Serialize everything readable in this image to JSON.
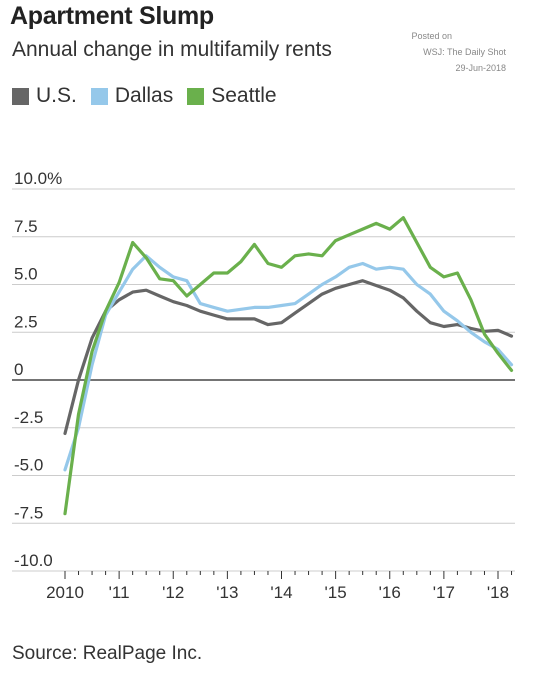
{
  "title": "Apartment Slump",
  "subtitle": "Annual change in multifamily rents",
  "credit": {
    "line1": "Posted on",
    "line2": "WSJ: The Daily Shot",
    "line3": "29-Jun-2018"
  },
  "source": "Source: RealPage Inc.",
  "colors": {
    "us": "#666666",
    "dallas": "#95c8ea",
    "seattle": "#6ab04c",
    "grid": "#cccccc",
    "zero": "#222222"
  },
  "chart_data": {
    "type": "line",
    "title": "Apartment Slump",
    "subtitle": "Annual change in multifamily rents",
    "ylabel": "",
    "xlabel": "",
    "ylim": [
      -10,
      10
    ],
    "xlim": [
      2010,
      2018.6
    ],
    "y_ticks": [
      10,
      7.5,
      5,
      2.5,
      0,
      -2.5,
      -5,
      -7.5,
      -10
    ],
    "y_tick_labels": [
      "10.0%",
      "7.5",
      "5.0",
      "2.5",
      "0",
      "-2.5",
      "-5.0",
      "-7.5",
      "-10.0"
    ],
    "x_ticks": [
      2010,
      2011,
      2012,
      2013,
      2014,
      2015,
      2016,
      2017,
      2018
    ],
    "x_tick_labels": [
      "2010",
      "'11",
      "'12",
      "'13",
      "'14",
      "'15",
      "'16",
      "'17",
      "'18"
    ],
    "grid": true,
    "legend_position": "top-left",
    "series": [
      {
        "name": "U.S.",
        "color": "#666666",
        "points": [
          [
            2010.0,
            -2.8
          ],
          [
            2010.25,
            0.0
          ],
          [
            2010.5,
            2.2
          ],
          [
            2010.75,
            3.6
          ],
          [
            2011.0,
            4.2
          ],
          [
            2011.25,
            4.6
          ],
          [
            2011.5,
            4.7
          ],
          [
            2011.75,
            4.4
          ],
          [
            2012.0,
            4.1
          ],
          [
            2012.25,
            3.9
          ],
          [
            2012.5,
            3.6
          ],
          [
            2012.75,
            3.4
          ],
          [
            2013.0,
            3.2
          ],
          [
            2013.25,
            3.2
          ],
          [
            2013.5,
            3.2
          ],
          [
            2013.75,
            2.9
          ],
          [
            2014.0,
            3.0
          ],
          [
            2014.25,
            3.5
          ],
          [
            2014.5,
            4.0
          ],
          [
            2014.75,
            4.5
          ],
          [
            2015.0,
            4.8
          ],
          [
            2015.25,
            5.0
          ],
          [
            2015.5,
            5.2
          ],
          [
            2015.75,
            4.95
          ],
          [
            2016.0,
            4.7
          ],
          [
            2016.25,
            4.3
          ],
          [
            2016.5,
            3.6
          ],
          [
            2016.75,
            3.0
          ],
          [
            2017.0,
            2.8
          ],
          [
            2017.25,
            2.9
          ],
          [
            2017.5,
            2.7
          ],
          [
            2017.75,
            2.55
          ],
          [
            2018.0,
            2.6
          ],
          [
            2018.25,
            2.3
          ]
        ]
      },
      {
        "name": "Dallas",
        "color": "#95c8ea",
        "points": [
          [
            2010.0,
            -4.7
          ],
          [
            2010.25,
            -2.5
          ],
          [
            2010.5,
            0.8
          ],
          [
            2010.75,
            3.4
          ],
          [
            2011.0,
            4.6
          ],
          [
            2011.25,
            5.8
          ],
          [
            2011.5,
            6.5
          ],
          [
            2011.75,
            5.9
          ],
          [
            2012.0,
            5.4
          ],
          [
            2012.25,
            5.2
          ],
          [
            2012.5,
            4.0
          ],
          [
            2012.75,
            3.8
          ],
          [
            2013.0,
            3.6
          ],
          [
            2013.25,
            3.7
          ],
          [
            2013.5,
            3.8
          ],
          [
            2013.75,
            3.8
          ],
          [
            2014.0,
            3.9
          ],
          [
            2014.25,
            4.0
          ],
          [
            2014.5,
            4.5
          ],
          [
            2014.75,
            5.0
          ],
          [
            2015.0,
            5.4
          ],
          [
            2015.25,
            5.9
          ],
          [
            2015.5,
            6.1
          ],
          [
            2015.75,
            5.8
          ],
          [
            2016.0,
            5.9
          ],
          [
            2016.25,
            5.8
          ],
          [
            2016.5,
            5.0
          ],
          [
            2016.75,
            4.5
          ],
          [
            2017.0,
            3.6
          ],
          [
            2017.25,
            3.1
          ],
          [
            2017.5,
            2.5
          ],
          [
            2017.75,
            2.0
          ],
          [
            2018.0,
            1.6
          ],
          [
            2018.25,
            0.8
          ]
        ]
      },
      {
        "name": "Seattle",
        "color": "#6ab04c",
        "points": [
          [
            2010.0,
            -7.0
          ],
          [
            2010.25,
            -1.8
          ],
          [
            2010.5,
            1.5
          ],
          [
            2010.75,
            3.6
          ],
          [
            2011.0,
            5.1
          ],
          [
            2011.25,
            7.2
          ],
          [
            2011.5,
            6.4
          ],
          [
            2011.75,
            5.3
          ],
          [
            2012.0,
            5.2
          ],
          [
            2012.25,
            4.4
          ],
          [
            2012.5,
            5.0
          ],
          [
            2012.75,
            5.6
          ],
          [
            2013.0,
            5.6
          ],
          [
            2013.25,
            6.2
          ],
          [
            2013.5,
            7.1
          ],
          [
            2013.75,
            6.1
          ],
          [
            2014.0,
            5.9
          ],
          [
            2014.25,
            6.5
          ],
          [
            2014.5,
            6.6
          ],
          [
            2014.75,
            6.5
          ],
          [
            2015.0,
            7.3
          ],
          [
            2015.25,
            7.6
          ],
          [
            2015.5,
            7.9
          ],
          [
            2015.75,
            8.2
          ],
          [
            2016.0,
            7.9
          ],
          [
            2016.25,
            8.5
          ],
          [
            2016.5,
            7.2
          ],
          [
            2016.75,
            5.9
          ],
          [
            2017.0,
            5.4
          ],
          [
            2017.25,
            5.6
          ],
          [
            2017.5,
            4.2
          ],
          [
            2017.75,
            2.4
          ],
          [
            2018.0,
            1.4
          ],
          [
            2018.25,
            0.5
          ]
        ]
      }
    ]
  }
}
